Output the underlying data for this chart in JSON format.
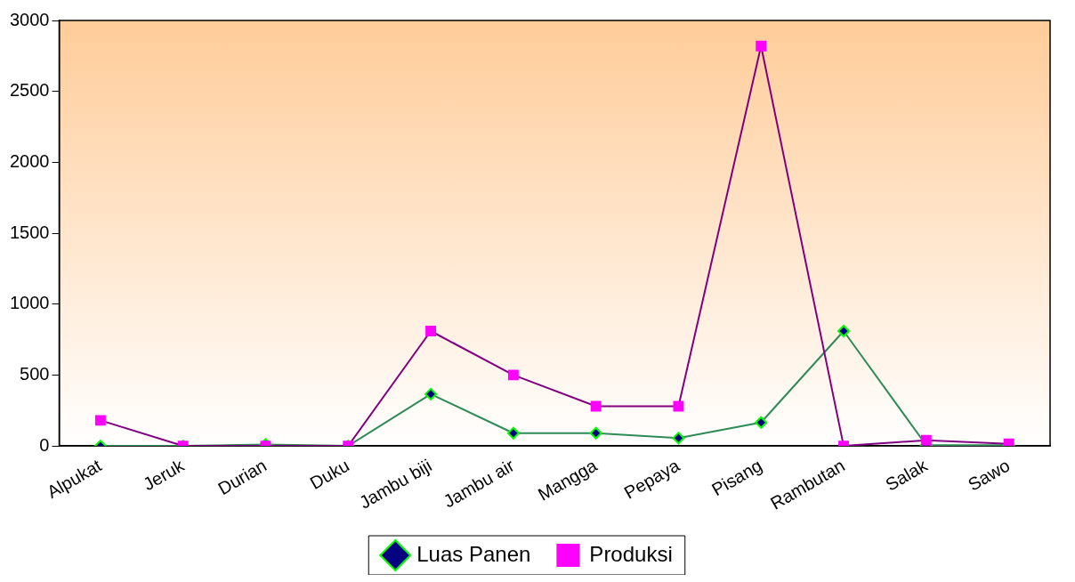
{
  "chart_data": {
    "type": "line",
    "categories": [
      "Alpukat",
      "Jeruk",
      "Durian",
      "Duku",
      "Jambu biji",
      "Jambu air",
      "Mangga",
      "Pepaya",
      "Pisang",
      "Rambutan",
      "Salak",
      "Sawo"
    ],
    "series": [
      {
        "name": "Luas Panen",
        "color": "#2e8b57",
        "marker": "diamond",
        "values": [
          0,
          0,
          10,
          0,
          365,
          90,
          90,
          55,
          165,
          810,
          5,
          5
        ]
      },
      {
        "name": "Produksi",
        "color": "#800080",
        "marker": "square",
        "values": [
          180,
          0,
          0,
          0,
          810,
          500,
          280,
          280,
          2820,
          0,
          40,
          15
        ]
      }
    ],
    "ylim": [
      0,
      3000
    ],
    "yticks": [
      0,
      500,
      1000,
      1500,
      2000,
      2500,
      3000
    ],
    "grid": false,
    "legend": "bottom",
    "line_style": "solid"
  }
}
